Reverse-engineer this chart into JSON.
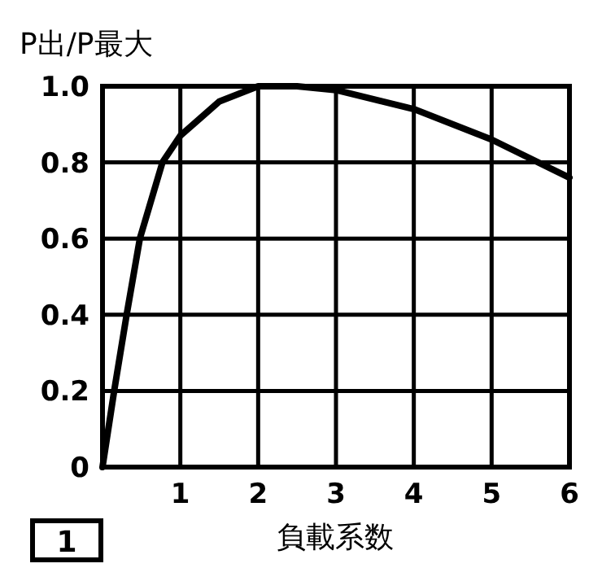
{
  "chart_data": {
    "type": "line",
    "ylabel": "P出/P最大",
    "xlabel": "負載系数",
    "annotations": [
      "1"
    ],
    "x": [
      0,
      0.15,
      0.31,
      0.48,
      0.77,
      1,
      1.5,
      2,
      2.5,
      3,
      4,
      5,
      6
    ],
    "series": [
      {
        "color": "#000000",
        "values": [
          0,
          0.2,
          0.4,
          0.6,
          0.8,
          0.87,
          0.96,
          1.0,
          1.0,
          0.99,
          0.94,
          0.86,
          0.76
        ]
      }
    ],
    "xlim": [
      0,
      6
    ],
    "ylim": [
      0,
      1
    ],
    "xticks": [
      1,
      2,
      3,
      4,
      5,
      6
    ],
    "yticks": [
      0,
      0.2,
      0.4,
      0.6,
      0.8,
      "1.0"
    ],
    "grid": true,
    "marker": "none",
    "line_style": "solid"
  }
}
